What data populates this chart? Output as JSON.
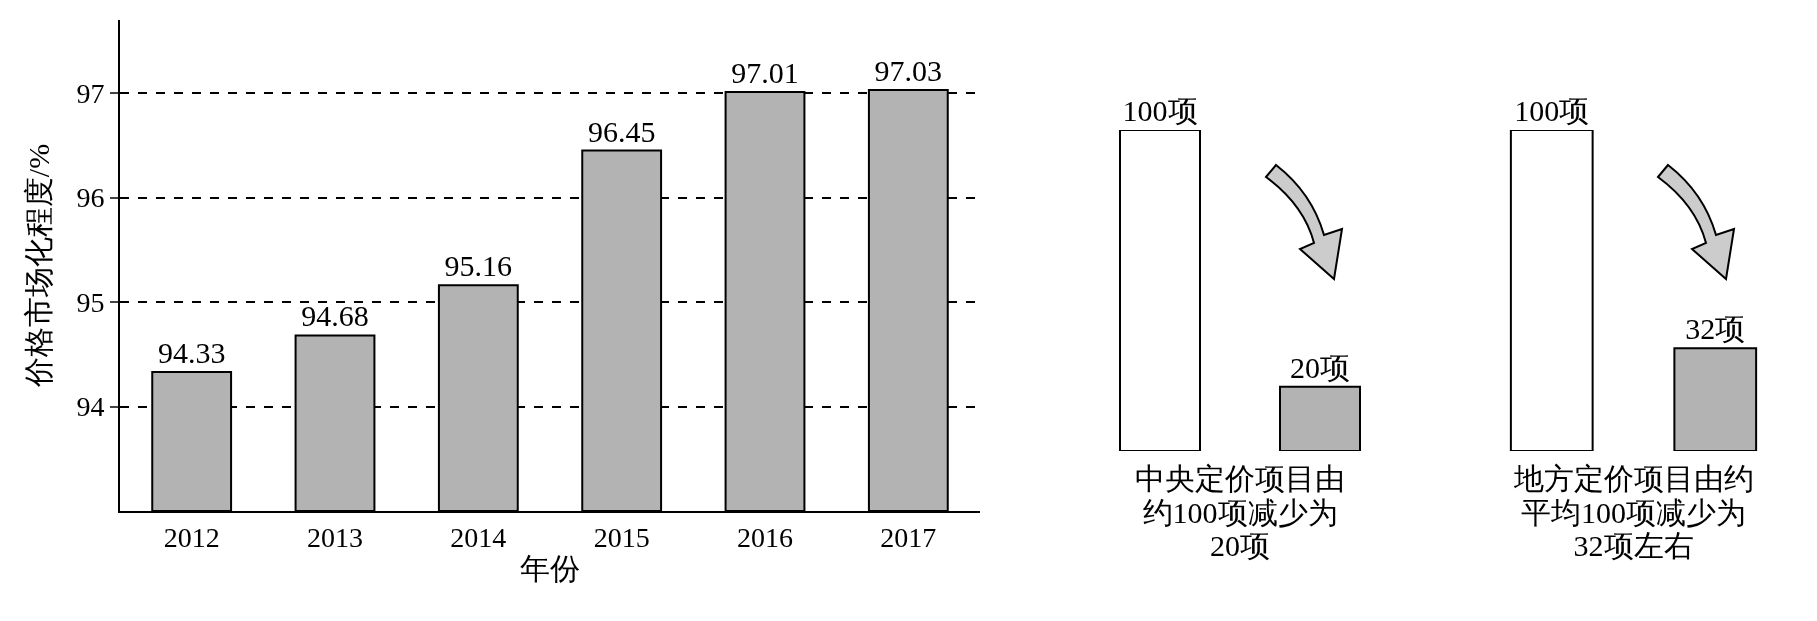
{
  "chart_data": [
    {
      "type": "bar",
      "ylabel": "价格市场化程度/%",
      "xlabel": "年份",
      "categories": [
        "2012",
        "2013",
        "2014",
        "2015",
        "2016",
        "2017"
      ],
      "values": [
        94.33,
        94.68,
        95.16,
        96.45,
        97.01,
        97.03
      ],
      "color": "#b3b3b3",
      "ylim": [
        93,
        97.7
      ],
      "yticks": [
        94,
        95,
        96,
        97
      ],
      "grid": "y",
      "data_labels": true
    },
    {
      "type": "bar",
      "xlabel": "中央定价项目由约100项减少为20项",
      "categories": [
        null,
        null
      ],
      "values": [
        100,
        20
      ],
      "colors": [
        "#ffffff",
        "#b3b3b3"
      ],
      "value_labels": [
        "100项",
        "20项"
      ]
    },
    {
      "type": "bar",
      "xlabel": "地方定价项目由约平均100项减少为32项左右",
      "categories": [
        null,
        null
      ],
      "values": [
        100,
        32
      ],
      "colors": [
        "#ffffff",
        "#b3b3b3"
      ],
      "value_labels": [
        "100项",
        "32项"
      ]
    }
  ]
}
